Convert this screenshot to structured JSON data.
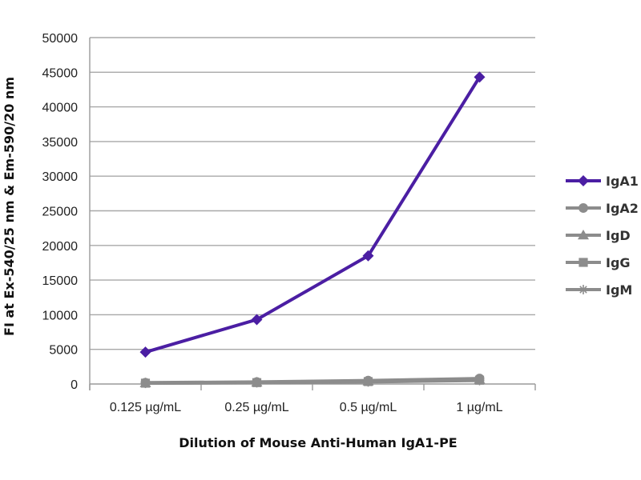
{
  "chart_data": {
    "type": "line",
    "title": "",
    "xlabel": "Dilution of Mouse Anti-Human IgA1-PE",
    "ylabel": "FI at Ex-540/25 nm & Em-590/20 nm",
    "categories": [
      "0.125 µg/mL",
      "0.25 µg/mL",
      "0.5 µg/mL",
      "1 µg/mL"
    ],
    "ylim": [
      0,
      50000
    ],
    "yticks": [
      0,
      5000,
      10000,
      15000,
      20000,
      25000,
      30000,
      35000,
      40000,
      45000,
      50000
    ],
    "grid": true,
    "legend_position": "right",
    "series": [
      {
        "name": "IgA1",
        "values": [
          4600,
          9300,
          18500,
          44300
        ],
        "color": "#4b1ea3",
        "marker": "diamond"
      },
      {
        "name": "IgA2",
        "values": [
          200,
          300,
          500,
          800
        ],
        "color": "#8c8c8c",
        "marker": "circle"
      },
      {
        "name": "IgD",
        "values": [
          150,
          250,
          400,
          650
        ],
        "color": "#8c8c8c",
        "marker": "triangle"
      },
      {
        "name": "IgG",
        "values": [
          120,
          200,
          350,
          550
        ],
        "color": "#8c8c8c",
        "marker": "square"
      },
      {
        "name": "IgM",
        "values": [
          100,
          180,
          300,
          500
        ],
        "color": "#8c8c8c",
        "marker": "star"
      }
    ]
  }
}
